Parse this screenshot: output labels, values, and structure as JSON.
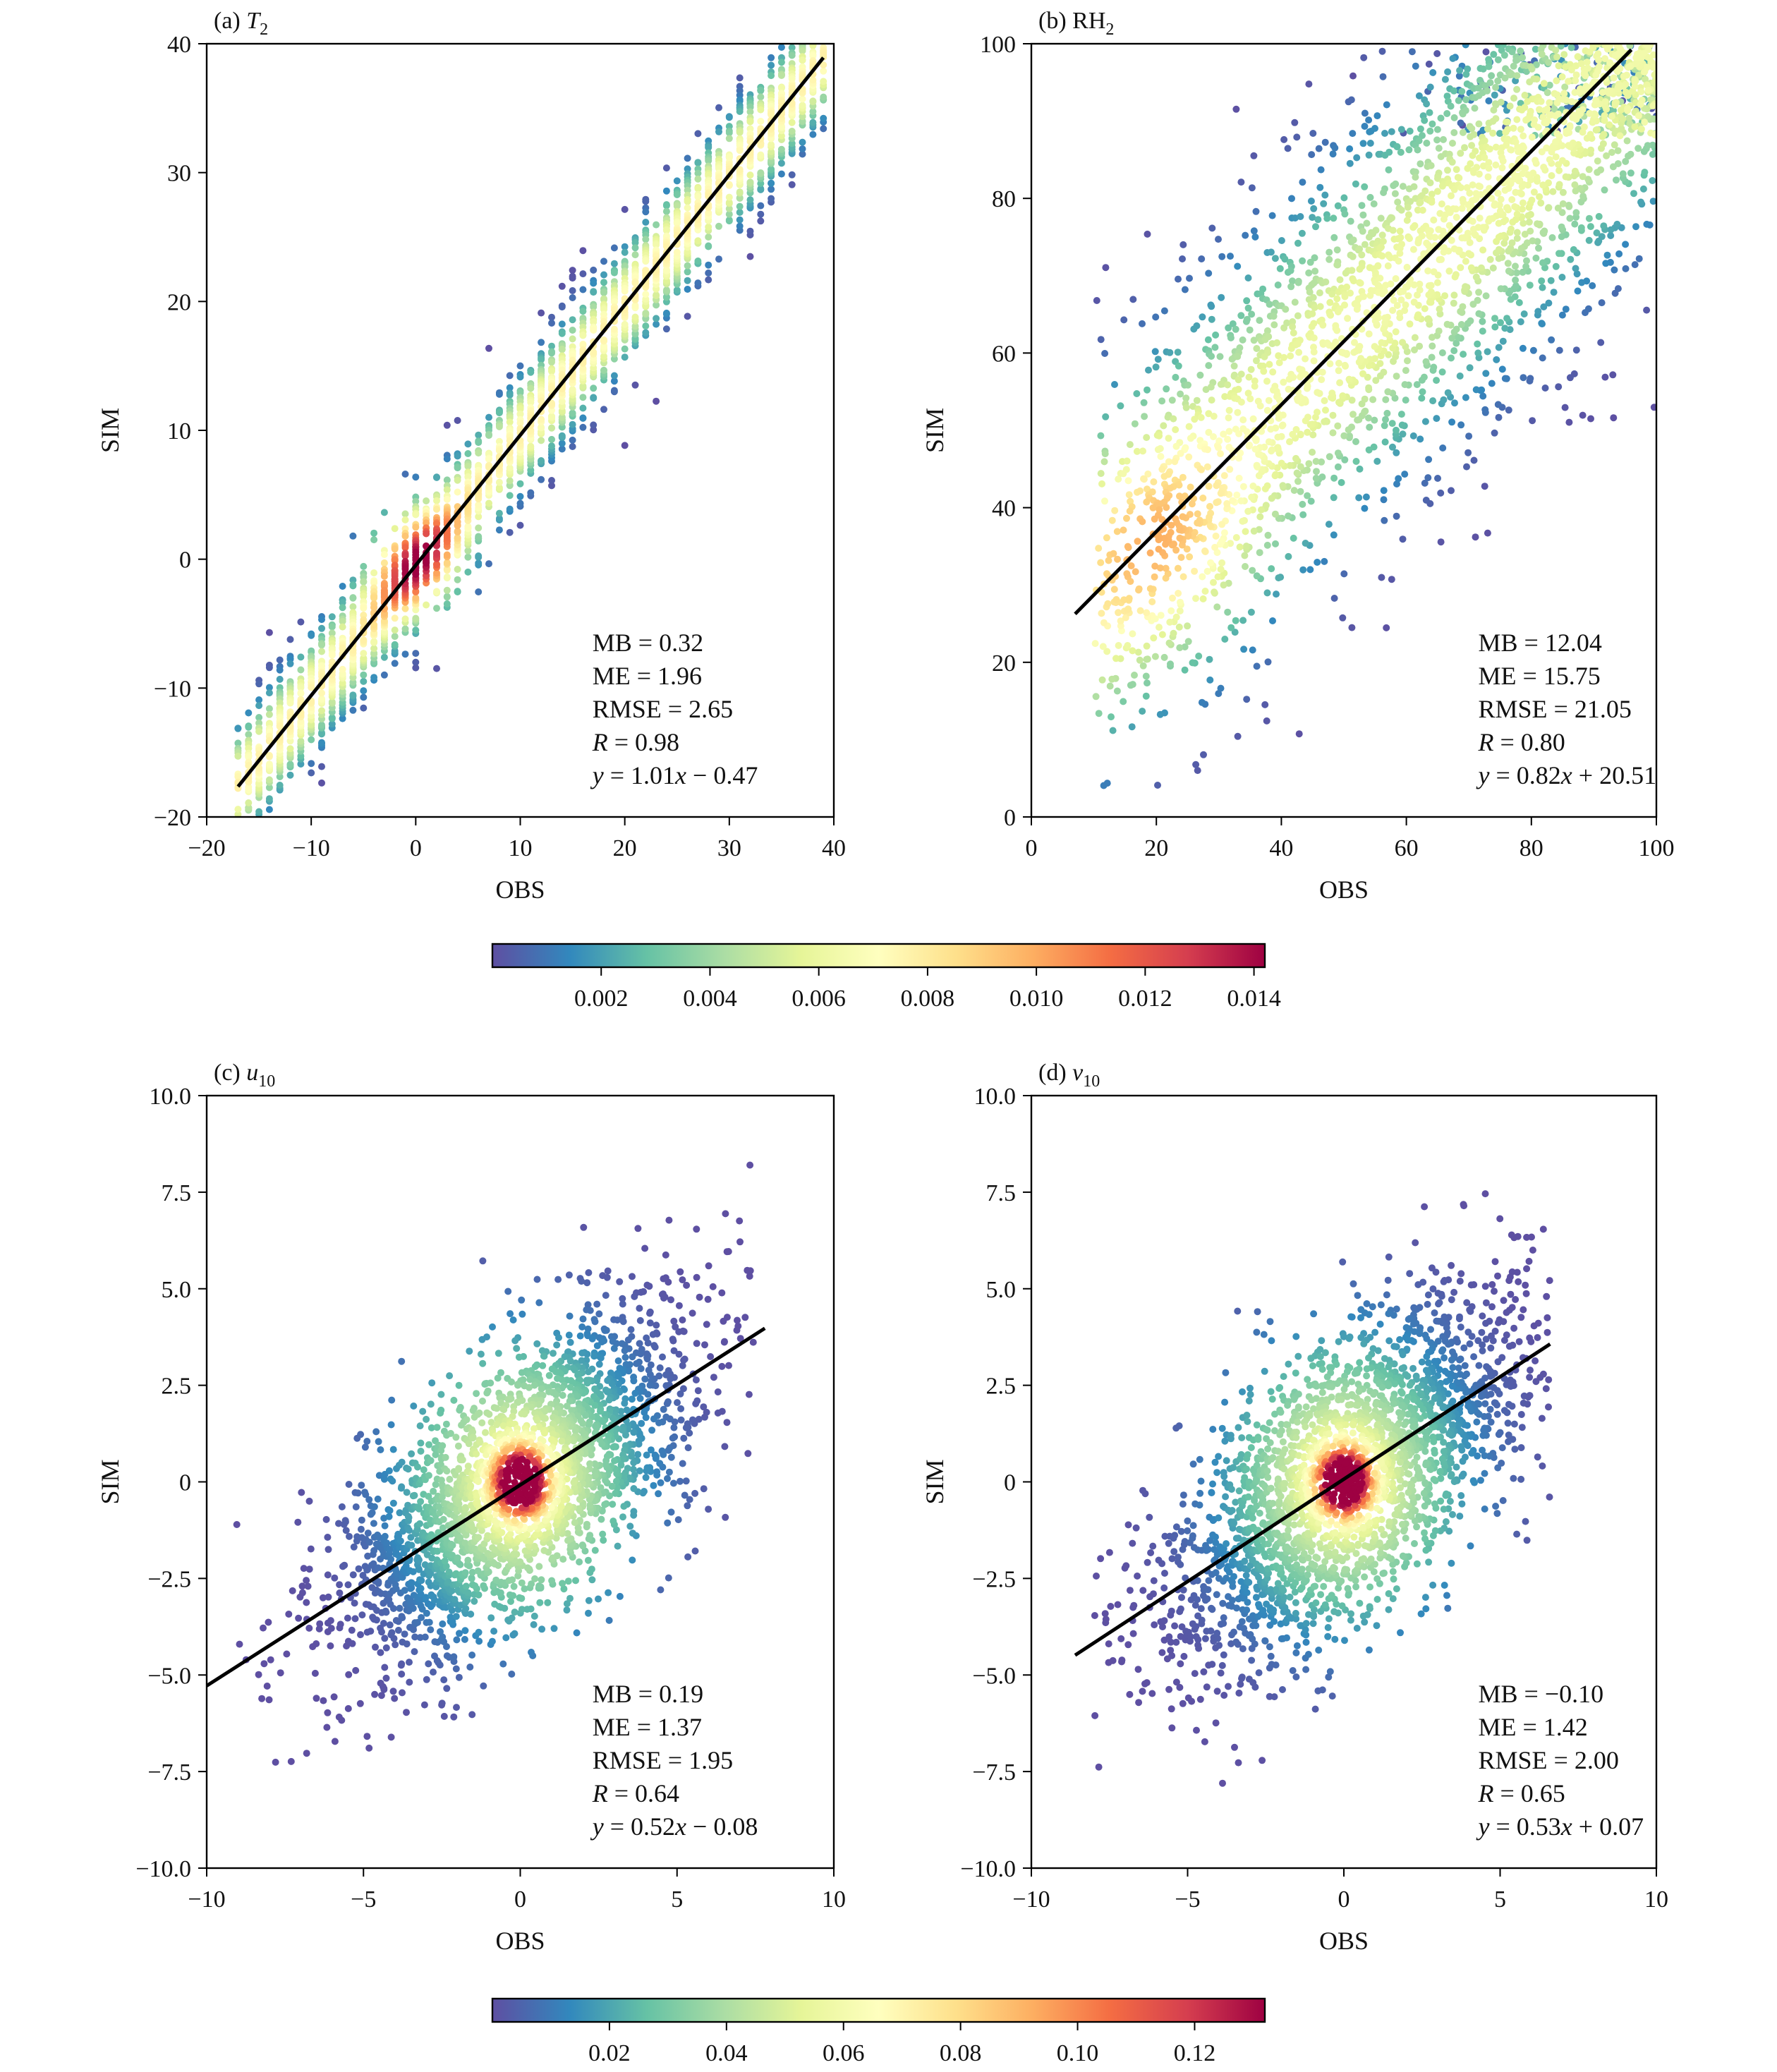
{
  "chart_data": [
    {
      "panel": "a",
      "type": "scatter",
      "title_prefix": "(a) ",
      "title_var": "T",
      "title_sub": "2",
      "title_italic": true,
      "xlabel": "OBS",
      "ylabel": "SIM",
      "xlim": [
        -20,
        40
      ],
      "ylim": [
        -20,
        40
      ],
      "xticks": [
        -20,
        -10,
        0,
        10,
        20,
        30,
        40
      ],
      "yticks": [
        -20,
        -10,
        0,
        10,
        20,
        30,
        40
      ],
      "xtick_labels": [
        "−20",
        "−10",
        "0",
        "10",
        "20",
        "30",
        "40"
      ],
      "ytick_labels": [
        "−20",
        "−10",
        "0",
        "10",
        "20",
        "30",
        "40"
      ],
      "fit": {
        "slope": 1.01,
        "intercept": -0.47,
        "x_range": [
          -17,
          39
        ]
      },
      "stats": [
        {
          "label": "MB",
          "italic": false,
          "value": "0.32"
        },
        {
          "label": "ME",
          "italic": false,
          "value": "1.96"
        },
        {
          "label": "RMSE",
          "italic": false,
          "value": "2.65"
        },
        {
          "label": "R",
          "italic": true,
          "value": "0.98"
        }
      ],
      "fit_text": [
        "y",
        " = 1.01",
        "x",
        " − 0.47"
      ],
      "density_model": {
        "kind": "linear_band",
        "x_range": [
          -17,
          39
        ],
        "spread": 2.6,
        "hotspot": [
          0,
          0
        ]
      }
    },
    {
      "panel": "b",
      "type": "scatter",
      "title_prefix": "(b) ",
      "title_var": "RH",
      "title_sub": "2",
      "title_italic": false,
      "xlabel": "OBS",
      "ylabel": "SIM",
      "xlim": [
        0,
        100
      ],
      "ylim": [
        0,
        100
      ],
      "xticks": [
        0,
        20,
        40,
        60,
        80,
        100
      ],
      "yticks": [
        0,
        20,
        40,
        60,
        80,
        100
      ],
      "xtick_labels": [
        "0",
        "20",
        "40",
        "60",
        "80",
        "100"
      ],
      "ytick_labels": [
        "0",
        "20",
        "40",
        "60",
        "80",
        "100"
      ],
      "fit": {
        "slope": 0.82,
        "intercept": 20.51,
        "x_range": [
          7,
          96
        ]
      },
      "stats": [
        {
          "label": "MB",
          "italic": false,
          "value": "12.04"
        },
        {
          "label": "ME",
          "italic": false,
          "value": "15.75"
        },
        {
          "label": "RMSE",
          "italic": false,
          "value": "21.05"
        },
        {
          "label": "R",
          "italic": true,
          "value": "0.80"
        }
      ],
      "fit_text": [
        "y",
        " = 0.82",
        "x",
        " + 20.51"
      ],
      "density_model": {
        "kind": "wide_cloud",
        "x_range": [
          8,
          100
        ],
        "spread": 14,
        "hotspot": [
          20,
          35
        ]
      }
    },
    {
      "panel": "c",
      "type": "scatter",
      "title_prefix": "(c) ",
      "title_var": "u",
      "title_sub": "10",
      "title_italic": true,
      "xlabel": "OBS",
      "ylabel": "SIM",
      "xlim": [
        -10,
        10
      ],
      "ylim": [
        -10,
        10
      ],
      "xticks": [
        -10,
        -5,
        0,
        5,
        10
      ],
      "yticks": [
        -10,
        -7.5,
        -5,
        -2.5,
        0,
        2.5,
        5,
        7.5,
        10
      ],
      "xtick_labels": [
        "−10",
        "−5",
        "0",
        "5",
        "10"
      ],
      "ytick_labels": [
        "−10.0",
        "−7.5",
        "−5.0",
        "−2.5",
        "0",
        "2.5",
        "5.0",
        "7.5",
        "10.0"
      ],
      "fit": {
        "slope": 0.52,
        "intercept": -0.08,
        "x_range": [
          -10,
          7.8
        ]
      },
      "stats": [
        {
          "label": "MB",
          "italic": false,
          "value": "0.19"
        },
        {
          "label": "ME",
          "italic": false,
          "value": "1.37"
        },
        {
          "label": "RMSE",
          "italic": false,
          "value": "1.95"
        },
        {
          "label": "R",
          "italic": true,
          "value": "0.64"
        }
      ],
      "fit_text": [
        "y",
        " = 0.52",
        "x",
        " − 0.08"
      ],
      "density_model": {
        "kind": "wind_cloud",
        "x_range": [
          -9.5,
          7.5
        ],
        "spread": 1.7,
        "hotspot": [
          0,
          0
        ]
      }
    },
    {
      "panel": "d",
      "type": "scatter",
      "title_prefix": "(d) ",
      "title_var": "v",
      "title_sub": "10",
      "title_italic": true,
      "xlabel": "OBS",
      "ylabel": "SIM",
      "xlim": [
        -10,
        10
      ],
      "ylim": [
        -10,
        10
      ],
      "xticks": [
        -10,
        -5,
        0,
        5,
        10
      ],
      "yticks": [
        -10,
        -7.5,
        -5,
        -2.5,
        0,
        2.5,
        5,
        7.5,
        10
      ],
      "xtick_labels": [
        "−10",
        "−5",
        "0",
        "5",
        "10"
      ],
      "ytick_labels": [
        "−10.0",
        "−7.5",
        "−5.0",
        "−2.5",
        "0",
        "2.5",
        "5.0",
        "7.5",
        "10.0"
      ],
      "fit": {
        "slope": 0.53,
        "intercept": 0.07,
        "x_range": [
          -8.6,
          6.6
        ]
      },
      "stats": [
        {
          "label": "MB",
          "italic": false,
          "value": "−0.10"
        },
        {
          "label": "ME",
          "italic": false,
          "value": "1.42"
        },
        {
          "label": "RMSE",
          "italic": false,
          "value": "2.00"
        },
        {
          "label": "R",
          "italic": true,
          "value": "0.65"
        }
      ],
      "fit_text": [
        "y",
        " = 0.53",
        "x",
        " + 0.07"
      ],
      "density_model": {
        "kind": "wind_cloud",
        "x_range": [
          -8,
          6.6
        ],
        "spread": 1.8,
        "hotspot": [
          0,
          0
        ]
      }
    }
  ],
  "colorbars": [
    {
      "id": "top",
      "range": [
        0,
        0.0142
      ],
      "ticks": [
        0.002,
        0.004,
        0.006,
        0.008,
        0.01,
        0.012,
        0.014
      ],
      "tick_labels": [
        "0.002",
        "0.004",
        "0.006",
        "0.008",
        "0.010",
        "0.012",
        "0.014"
      ]
    },
    {
      "id": "bottom",
      "range": [
        0,
        0.132
      ],
      "ticks": [
        0.02,
        0.04,
        0.06,
        0.08,
        0.1,
        0.12
      ],
      "tick_labels": [
        "0.02",
        "0.04",
        "0.06",
        "0.08",
        "0.10",
        "0.12"
      ]
    }
  ],
  "colormap": [
    "#5e4fa2",
    "#3288bd",
    "#66c2a5",
    "#abdda4",
    "#e6f598",
    "#ffffbf",
    "#fee08b",
    "#fdae61",
    "#f46d43",
    "#d53e4f",
    "#9e0142"
  ],
  "colormap_name": "Spectral_r"
}
